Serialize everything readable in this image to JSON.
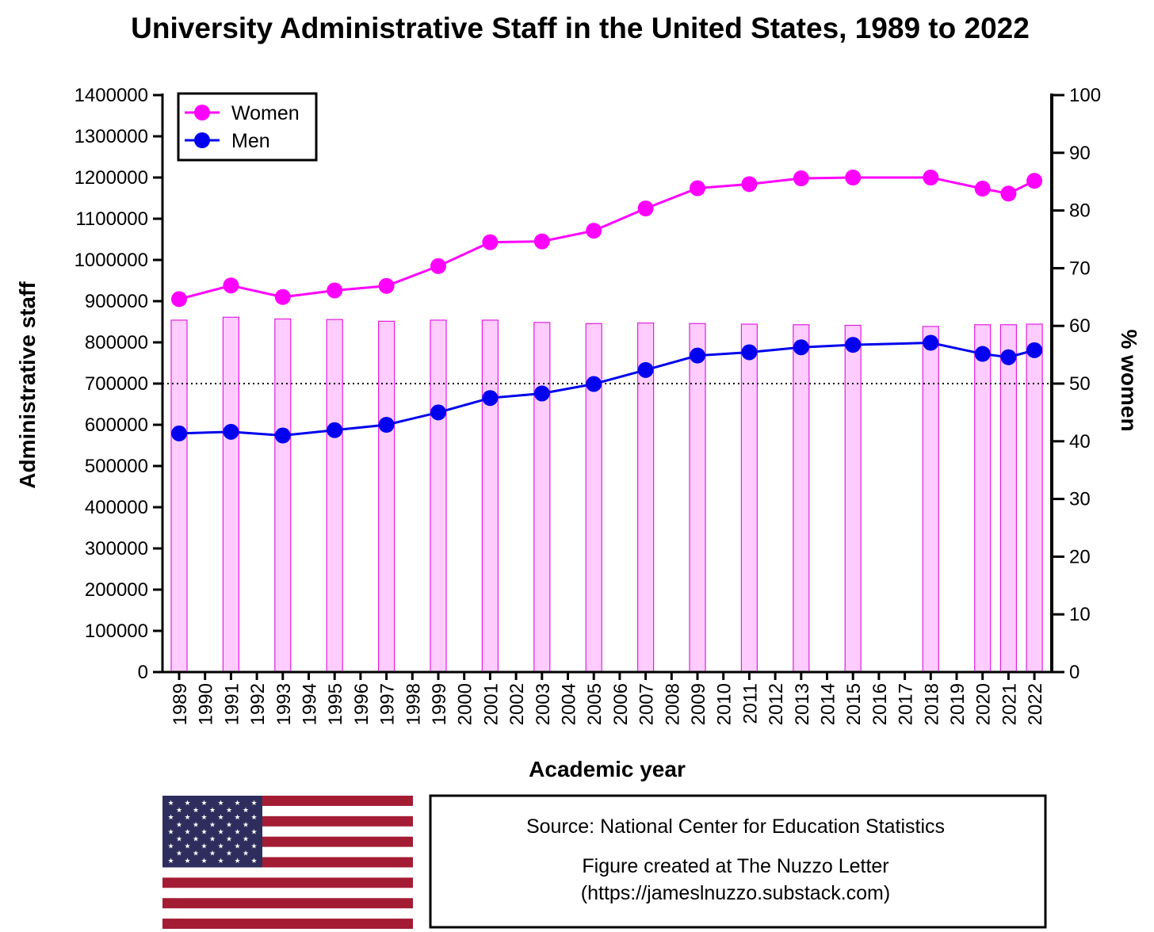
{
  "colors": {
    "women": "#FF00FF",
    "men": "#0000EE",
    "bar_fill": "#FFCCFF",
    "bar_stroke": "#E020E0",
    "axis": "#000000",
    "flag_red": "#A31C34",
    "flag_blue": "#2E2E5E"
  },
  "chart_data": {
    "type": "line",
    "title": "University Administrative Staff in the United States, 1989 to 2022",
    "xlabel": "Academic year",
    "ylabel": "Administrative staff",
    "y2label": "% women",
    "ylim": [
      0,
      1400000
    ],
    "y2lim": [
      0,
      100
    ],
    "yticks": [
      "0",
      "100000",
      "200000",
      "300000",
      "400000",
      "500000",
      "600000",
      "700000",
      "800000",
      "900000",
      "1000000",
      "1100000",
      "1200000",
      "1300000",
      "1400000"
    ],
    "y2ticks": [
      "0",
      "10",
      "20",
      "30",
      "40",
      "50",
      "60",
      "70",
      "80",
      "90",
      "100"
    ],
    "categories": [
      "1989",
      "1990",
      "1991",
      "1992",
      "1993",
      "1994",
      "1995",
      "1996",
      "1997",
      "1998",
      "1999",
      "2000",
      "2001",
      "2002",
      "2003",
      "2004",
      "2005",
      "2006",
      "2007",
      "2008",
      "2009",
      "2010",
      "2011",
      "2012",
      "2013",
      "2014",
      "2015",
      "2016",
      "2017",
      "2018",
      "2019",
      "2020",
      "2021",
      "2022"
    ],
    "series": [
      {
        "name": "Women",
        "axis": "left",
        "values": [
          905000,
          null,
          938000,
          null,
          910000,
          null,
          926000,
          null,
          937000,
          null,
          985000,
          null,
          1043000,
          null,
          1045000,
          null,
          1071000,
          null,
          1125000,
          null,
          1174000,
          null,
          1184000,
          null,
          1198000,
          null,
          1200000,
          null,
          null,
          1200000,
          null,
          1173000,
          1161000,
          1192000
        ]
      },
      {
        "name": "Men",
        "axis": "left",
        "values": [
          579000,
          null,
          583000,
          null,
          574000,
          null,
          587000,
          null,
          600000,
          null,
          630000,
          null,
          665000,
          null,
          676000,
          null,
          699000,
          null,
          733000,
          null,
          768000,
          null,
          776000,
          null,
          788000,
          null,
          794000,
          null,
          null,
          799000,
          null,
          772000,
          764000,
          781000
        ]
      }
    ],
    "bars": {
      "axis": "right",
      "values": [
        61,
        null,
        61.5,
        null,
        61.2,
        null,
        61.1,
        null,
        60.8,
        null,
        61,
        null,
        61,
        null,
        60.6,
        null,
        60.4,
        null,
        60.5,
        null,
        60.4,
        null,
        60.3,
        null,
        60.2,
        null,
        60.1,
        null,
        null,
        59.9,
        null,
        60.2,
        60.2,
        60.3
      ]
    },
    "reference_line": {
      "axis": "right",
      "value": 50,
      "style": "dotted"
    },
    "legend_position": "top-left",
    "grid": false
  },
  "source_box": {
    "line1": "Source: National Center for Education Statistics",
    "line2": "Figure created at The Nuzzo Letter",
    "line3": "(https://jameslnuzzo.substack.com)"
  },
  "flag": {
    "icon": "us-flag-icon"
  }
}
